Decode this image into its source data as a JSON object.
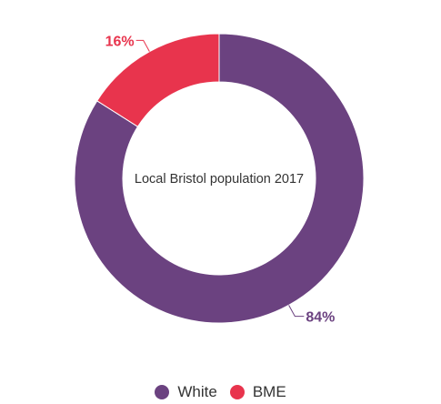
{
  "chart_data": {
    "type": "pie",
    "variant": "donut",
    "center_label": "Local Bristol population 2017",
    "categories": [
      "White",
      "BME"
    ],
    "values": [
      84,
      16
    ],
    "data_labels": [
      "84%",
      "16%"
    ],
    "colors": [
      "#6b4280",
      "#e8344d"
    ],
    "legend": {
      "placement": "bottom-center",
      "entries": [
        "White",
        "BME"
      ]
    }
  }
}
